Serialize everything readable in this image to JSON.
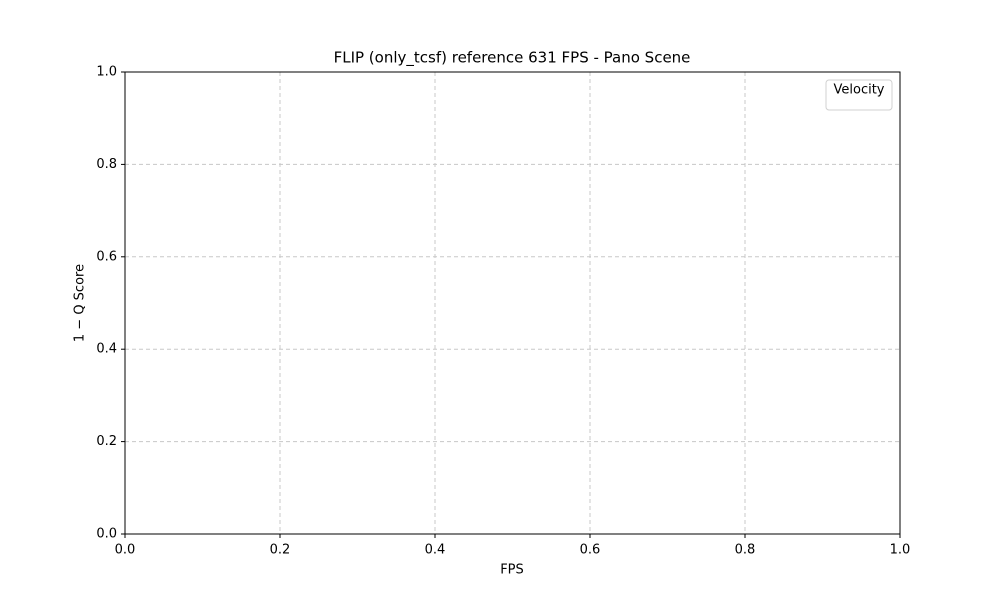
{
  "chart_data": {
    "type": "line",
    "title": "FLIP (only_tcsf) reference 631 FPS - Pano Scene",
    "x_label": "FPS",
    "y_label": "1 − Q Score",
    "series": [],
    "xlim": [
      0,
      1
    ],
    "ylim": [
      0,
      1
    ],
    "xticks": [
      {
        "value": 0,
        "label": "0.0"
      },
      0.2,
      0.4,
      0.6,
      0.8,
      {
        "value": 1,
        "label": "1.0"
      }
    ],
    "yticks": [
      {
        "value": 0,
        "label": "0.0"
      },
      0.2,
      0.4,
      0.6,
      0.8,
      {
        "value": 1,
        "label": "1.0"
      }
    ],
    "grid": true,
    "legend_title": "Velocity",
    "legend_position": "upper right"
  }
}
